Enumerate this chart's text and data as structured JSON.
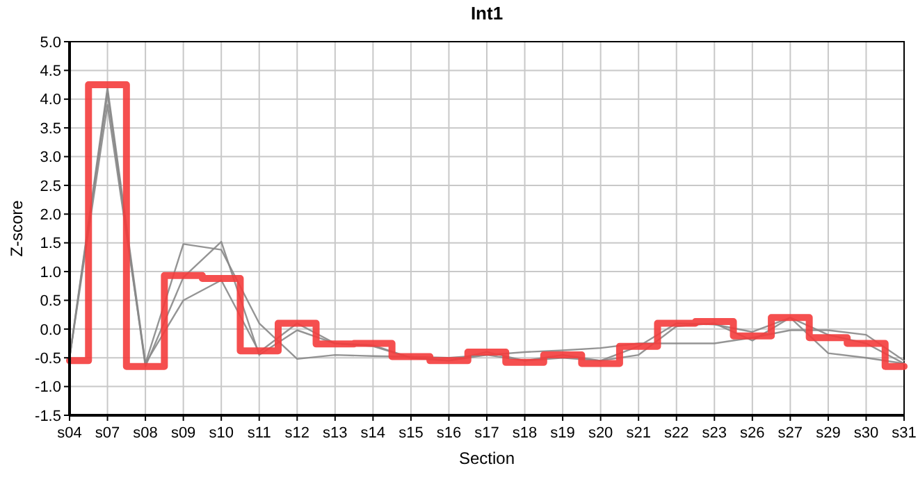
{
  "chart_data": {
    "type": "line",
    "title": "Int1",
    "xlabel": "Section",
    "ylabel": "Z-score",
    "categories": [
      "s04",
      "s07",
      "s08",
      "s09",
      "s10",
      "s11",
      "s12",
      "s13",
      "s14",
      "s15",
      "s16",
      "s17",
      "s18",
      "s19",
      "s20",
      "s21",
      "s22",
      "s23",
      "s26",
      "s27",
      "s29",
      "s30",
      "s31"
    ],
    "series": [
      {
        "color": "#888888",
        "values": [
          -0.5,
          4.2,
          -0.6,
          1.48,
          1.38,
          0.1,
          -0.52,
          -0.45,
          -0.47,
          -0.48,
          -0.5,
          -0.45,
          -0.4,
          -0.37,
          -0.33,
          -0.25,
          -0.25,
          -0.25,
          -0.15,
          -0.02,
          -0.02,
          -0.1,
          -0.55
        ]
      },
      {
        "color": "#888888",
        "values": [
          -0.5,
          4.1,
          -0.65,
          0.9,
          1.52,
          -0.45,
          -0.02,
          -0.25,
          -0.3,
          -0.5,
          -0.55,
          -0.45,
          -0.55,
          -0.45,
          -0.55,
          -0.45,
          0.05,
          0.1,
          -0.2,
          0.2,
          -0.42,
          -0.5,
          -0.6
        ]
      },
      {
        "color": "#888888",
        "values": [
          -0.5,
          3.9,
          -0.6,
          0.5,
          0.85,
          -0.4,
          0.1,
          -0.25,
          -0.28,
          -0.5,
          -0.55,
          -0.4,
          -0.55,
          -0.5,
          -0.55,
          -0.3,
          0.1,
          0.08,
          -0.05,
          0.2,
          -0.1,
          -0.25,
          -0.6
        ]
      },
      {
        "type": "step",
        "color": "#f43c3c",
        "values": [
          -0.55,
          4.25,
          -0.65,
          0.93,
          0.88,
          -0.38,
          0.1,
          -0.26,
          -0.25,
          -0.48,
          -0.55,
          -0.4,
          -0.58,
          -0.45,
          -0.6,
          -0.3,
          0.1,
          0.13,
          -0.12,
          0.2,
          -0.15,
          -0.25,
          -0.65
        ]
      }
    ],
    "ylim": [
      -1.5,
      5
    ],
    "yticks": [
      {
        "value": -1.5,
        "label": "-1.5"
      },
      {
        "value": -1,
        "label": "-1.0"
      },
      {
        "value": -0.5,
        "label": "-0.5"
      },
      {
        "value": 0,
        "label": "0.0"
      },
      {
        "value": 0.5,
        "label": "0.5"
      },
      {
        "value": 1,
        "label": "1.0"
      },
      {
        "value": 1.5,
        "label": "1.5"
      },
      {
        "value": 2,
        "label": "2.0"
      },
      {
        "value": 2.5,
        "label": "2.5"
      },
      {
        "value": 3,
        "label": "3.0"
      },
      {
        "value": 3.5,
        "label": "3.5"
      },
      {
        "value": 4,
        "label": "4.0"
      },
      {
        "value": 4.5,
        "label": "4.5"
      },
      {
        "value": 5,
        "label": "5.0"
      }
    ],
    "grid": true
  }
}
